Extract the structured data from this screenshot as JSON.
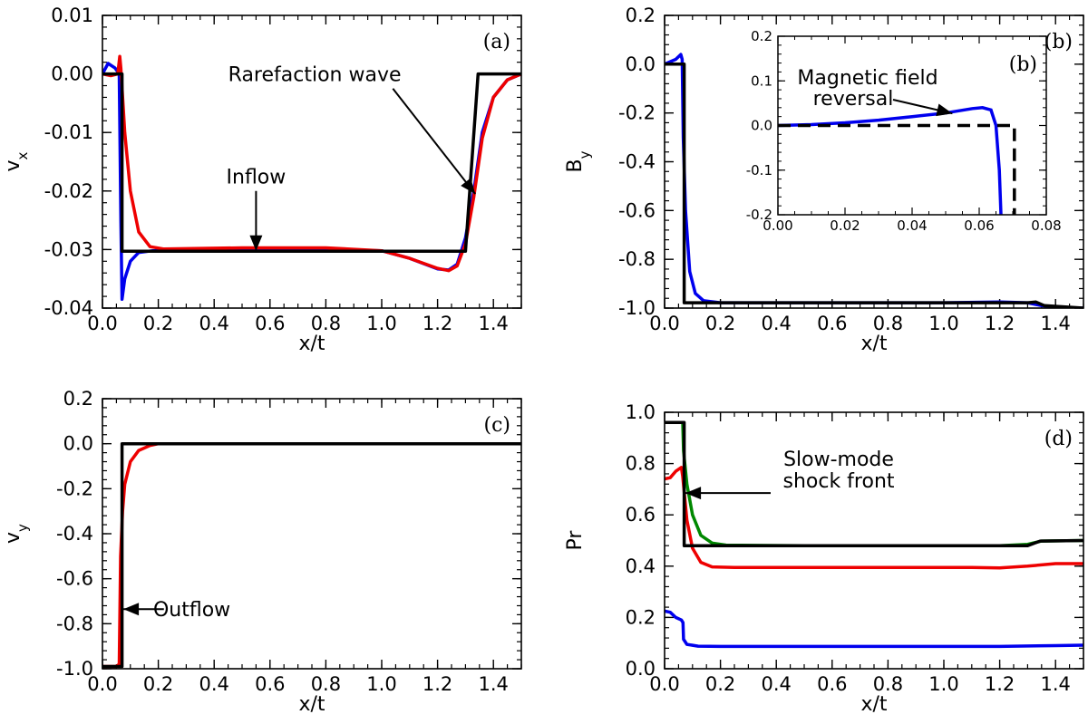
{
  "chart_data": [
    {
      "id": "a",
      "type": "line",
      "panel_label": "(a)",
      "xlabel": "x/t",
      "ylabel": "v",
      "ylabel_sub": "x",
      "xlim": [
        0,
        1.5
      ],
      "ylim": [
        -0.04,
        0.01
      ],
      "xticks": [
        0.0,
        0.2,
        0.4,
        0.6,
        0.8,
        1.0,
        1.2,
        1.4
      ],
      "xtick_labels": [
        "0.0",
        "0.2",
        "0.4",
        "0.6",
        "0.8",
        "1.0",
        "1.2",
        "1.4"
      ],
      "yticks": [
        -0.04,
        -0.03,
        -0.02,
        -0.01,
        0.0,
        0.01
      ],
      "ytick_labels": [
        "-0.04",
        "-0.03",
        "-0.02",
        "-0.01",
        "0.00",
        "0.01"
      ],
      "series": [
        {
          "name": "blue",
          "color": "#0000ee",
          "points": [
            [
              0,
              0
            ],
            [
              0.02,
              0.0018
            ],
            [
              0.045,
              0.001
            ],
            [
              0.06,
              0
            ],
            [
              0.066,
              -0.025
            ],
            [
              0.07,
              -0.0385
            ],
            [
              0.08,
              -0.035
            ],
            [
              0.1,
              -0.032
            ],
            [
              0.13,
              -0.0305
            ],
            [
              0.18,
              -0.0302
            ],
            [
              0.4,
              -0.0301
            ],
            [
              0.8,
              -0.03
            ],
            [
              1.0,
              -0.0302
            ],
            [
              1.1,
              -0.0315
            ],
            [
              1.2,
              -0.0333
            ],
            [
              1.24,
              -0.0335
            ],
            [
              1.27,
              -0.0325
            ],
            [
              1.3,
              -0.028
            ],
            [
              1.33,
              -0.02
            ],
            [
              1.36,
              -0.01
            ],
            [
              1.4,
              -0.004
            ],
            [
              1.45,
              -0.001
            ],
            [
              1.5,
              0
            ]
          ]
        },
        {
          "name": "red",
          "color": "#ee0000",
          "points": [
            [
              0,
              0
            ],
            [
              0.03,
              -0.0003
            ],
            [
              0.055,
              0
            ],
            [
              0.062,
              0.003
            ],
            [
              0.066,
              0.001
            ],
            [
              0.08,
              -0.01
            ],
            [
              0.1,
              -0.02
            ],
            [
              0.13,
              -0.027
            ],
            [
              0.17,
              -0.0295
            ],
            [
              0.22,
              -0.0299
            ],
            [
              0.5,
              -0.0297
            ],
            [
              0.8,
              -0.0297
            ],
            [
              1.0,
              -0.0302
            ],
            [
              1.1,
              -0.0315
            ],
            [
              1.2,
              -0.0332
            ],
            [
              1.24,
              -0.0336
            ],
            [
              1.27,
              -0.0328
            ],
            [
              1.3,
              -0.029
            ],
            [
              1.33,
              -0.021
            ],
            [
              1.36,
              -0.011
            ],
            [
              1.4,
              -0.004
            ],
            [
              1.45,
              -0.001
            ],
            [
              1.5,
              0
            ]
          ]
        },
        {
          "name": "black",
          "color": "#000000",
          "points": [
            [
              0,
              0
            ],
            [
              0.07,
              0
            ],
            [
              0.07,
              -0.0303
            ],
            [
              1.3,
              -0.0303
            ],
            [
              1.345,
              0
            ],
            [
              1.5,
              0
            ]
          ]
        }
      ],
      "annotations": [
        {
          "text": "Rarefaction wave",
          "x": 0.76,
          "y": 0.0,
          "arrow_to": [
            1.335,
            -0.0205
          ]
        },
        {
          "text": "Inflow",
          "x": 0.55,
          "y": -0.0175,
          "arrow_to": [
            0.55,
            -0.0302
          ]
        }
      ]
    },
    {
      "id": "b",
      "type": "line",
      "panel_label": "(b)",
      "xlabel": "x/t",
      "ylabel": "B",
      "ylabel_sub": "y",
      "xlim": [
        0,
        1.5
      ],
      "ylim": [
        -1.0,
        0.2
      ],
      "xticks": [
        0.0,
        0.2,
        0.4,
        0.6,
        0.8,
        1.0,
        1.2,
        1.4
      ],
      "xtick_labels": [
        "0.0",
        "0.2",
        "0.4",
        "0.6",
        "0.8",
        "1.0",
        "1.2",
        "1.4"
      ],
      "yticks": [
        -1.0,
        -0.8,
        -0.6,
        -0.4,
        -0.2,
        0.0,
        0.2
      ],
      "ytick_labels": [
        "-1.0",
        "-0.8",
        "-0.6",
        "-0.4",
        "-0.2",
        "0.0",
        "0.2"
      ],
      "series": [
        {
          "name": "blue",
          "color": "#0000ee",
          "points": [
            [
              0,
              0
            ],
            [
              0.04,
              0.02
            ],
            [
              0.058,
              0.04
            ],
            [
              0.063,
              0.02
            ],
            [
              0.067,
              -0.3
            ],
            [
              0.075,
              -0.6
            ],
            [
              0.09,
              -0.85
            ],
            [
              0.11,
              -0.94
            ],
            [
              0.14,
              -0.97
            ],
            [
              0.2,
              -0.978
            ],
            [
              0.6,
              -0.978
            ],
            [
              1.0,
              -0.978
            ],
            [
              1.2,
              -0.975
            ],
            [
              1.3,
              -0.978
            ],
            [
              1.35,
              -0.99
            ],
            [
              1.4,
              -0.997
            ],
            [
              1.5,
              -1.0
            ]
          ]
        },
        {
          "name": "black",
          "color": "#000000",
          "points": [
            [
              0,
              0
            ],
            [
              0.07,
              0
            ],
            [
              0.07,
              -0.978
            ],
            [
              1.3,
              -0.978
            ],
            [
              1.33,
              -0.975
            ],
            [
              1.36,
              -0.99
            ],
            [
              1.5,
              -1.0
            ]
          ]
        }
      ],
      "inset": {
        "xlim": [
          0,
          0.08
        ],
        "ylim": [
          -0.2,
          0.2
        ],
        "xticks": [
          0.0,
          0.02,
          0.04,
          0.06,
          0.08
        ],
        "xtick_labels": [
          "0.00",
          "0.02",
          "0.04",
          "0.06",
          "0.08"
        ],
        "yticks": [
          -0.2,
          -0.1,
          0.0,
          0.1,
          0.2
        ],
        "ytick_labels": [
          "-0.2",
          "-0.1",
          "0.0",
          "0.1",
          "0.2"
        ],
        "series": [
          {
            "name": "blue",
            "color": "#0000ee",
            "points": [
              [
                0,
                0
              ],
              [
                0.01,
                0.002
              ],
              [
                0.02,
                0.006
              ],
              [
                0.03,
                0.012
              ],
              [
                0.04,
                0.02
              ],
              [
                0.05,
                0.028
              ],
              [
                0.058,
                0.038
              ],
              [
                0.061,
                0.04
              ],
              [
                0.0635,
                0.035
              ],
              [
                0.065,
                0.0
              ],
              [
                0.066,
                -0.1
              ],
              [
                0.0665,
                -0.2
              ]
            ]
          },
          {
            "name": "black",
            "color": "#000000",
            "dashed": true,
            "points": [
              [
                0,
                0
              ],
              [
                0.0705,
                0
              ],
              [
                0.0705,
                -0.2
              ]
            ]
          }
        ],
        "annotation": {
          "line1": "Magnetic field",
          "line2": "reversal",
          "arrow_to": [
            0.052,
            0.027
          ]
        }
      }
    },
    {
      "id": "c",
      "type": "line",
      "panel_label": "(c)",
      "xlabel": "x/t",
      "ylabel": "v",
      "ylabel_sub": "y",
      "xlim": [
        0,
        1.5
      ],
      "ylim": [
        -1.0,
        0.2
      ],
      "xticks": [
        0.0,
        0.2,
        0.4,
        0.6,
        0.8,
        1.0,
        1.2,
        1.4
      ],
      "xtick_labels": [
        "0.0",
        "0.2",
        "0.4",
        "0.6",
        "0.8",
        "1.0",
        "1.2",
        "1.4"
      ],
      "yticks": [
        -1.0,
        -0.8,
        -0.6,
        -0.4,
        -0.2,
        0.0,
        0.2
      ],
      "ytick_labels": [
        "-1.0",
        "-0.8",
        "-0.6",
        "-0.4",
        "-0.2",
        "0.0",
        "0.2"
      ],
      "series": [
        {
          "name": "red",
          "color": "#ee0000",
          "points": [
            [
              0,
              -0.99
            ],
            [
              0.05,
              -0.99
            ],
            [
              0.06,
              -0.98
            ],
            [
              0.065,
              -0.5
            ],
            [
              0.072,
              -0.3
            ],
            [
              0.08,
              -0.18
            ],
            [
              0.1,
              -0.08
            ],
            [
              0.13,
              -0.03
            ],
            [
              0.17,
              -0.008
            ],
            [
              0.2,
              0
            ],
            [
              1.3,
              0
            ],
            [
              1.5,
              0
            ]
          ]
        },
        {
          "name": "black",
          "color": "#000000",
          "points": [
            [
              0,
              -0.99
            ],
            [
              0.07,
              -0.99
            ],
            [
              0.07,
              0
            ],
            [
              1.5,
              0
            ]
          ]
        }
      ],
      "annotations": [
        {
          "text": "Outflow",
          "x": 0.32,
          "y": -0.735,
          "arrow_to": [
            0.075,
            -0.735
          ]
        }
      ]
    },
    {
      "id": "d",
      "type": "line",
      "panel_label": "(d)",
      "xlabel": "x/t",
      "ylabel": "Pr",
      "ylabel_sub": "",
      "xlim": [
        0,
        1.5
      ],
      "ylim": [
        0.0,
        1.0
      ],
      "xticks": [
        0.0,
        0.2,
        0.4,
        0.6,
        0.8,
        1.0,
        1.2,
        1.4
      ],
      "xtick_labels": [
        "0.0",
        "0.2",
        "0.4",
        "0.6",
        "0.8",
        "1.0",
        "1.2",
        "1.4"
      ],
      "yticks": [
        0.0,
        0.2,
        0.4,
        0.6,
        0.8,
        1.0
      ],
      "ytick_labels": [
        "0.0",
        "0.2",
        "0.4",
        "0.6",
        "0.8",
        "1.0"
      ],
      "series": [
        {
          "name": "green",
          "color": "#008800",
          "points": [
            [
              0,
              0.96
            ],
            [
              0.065,
              0.96
            ],
            [
              0.068,
              0.85
            ],
            [
              0.08,
              0.72
            ],
            [
              0.1,
              0.6
            ],
            [
              0.13,
              0.52
            ],
            [
              0.17,
              0.49
            ],
            [
              0.22,
              0.482
            ],
            [
              0.5,
              0.48
            ],
            [
              1.2,
              0.48
            ],
            [
              1.3,
              0.485
            ],
            [
              1.35,
              0.498
            ],
            [
              1.5,
              0.5
            ]
          ]
        },
        {
          "name": "red",
          "color": "#ee0000",
          "points": [
            [
              0,
              0.74
            ],
            [
              0.02,
              0.745
            ],
            [
              0.04,
              0.77
            ],
            [
              0.06,
              0.785
            ],
            [
              0.065,
              0.75
            ],
            [
              0.08,
              0.58
            ],
            [
              0.1,
              0.47
            ],
            [
              0.13,
              0.415
            ],
            [
              0.17,
              0.397
            ],
            [
              0.25,
              0.395
            ],
            [
              0.6,
              0.395
            ],
            [
              1.1,
              0.395
            ],
            [
              1.2,
              0.393
            ],
            [
              1.3,
              0.4
            ],
            [
              1.4,
              0.41
            ],
            [
              1.5,
              0.41
            ]
          ]
        },
        {
          "name": "blue",
          "color": "#0000ee",
          "points": [
            [
              0,
              0.225
            ],
            [
              0.02,
              0.22
            ],
            [
              0.04,
              0.2
            ],
            [
              0.06,
              0.19
            ],
            [
              0.066,
              0.18
            ],
            [
              0.068,
              0.115
            ],
            [
              0.08,
              0.095
            ],
            [
              0.12,
              0.088
            ],
            [
              0.2,
              0.087
            ],
            [
              1.0,
              0.087
            ],
            [
              1.2,
              0.087
            ],
            [
              1.4,
              0.09
            ],
            [
              1.5,
              0.092
            ]
          ]
        },
        {
          "name": "black",
          "color": "#000000",
          "points": [
            [
              0,
              0.96
            ],
            [
              0.07,
              0.96
            ],
            [
              0.07,
              0.48
            ],
            [
              1.3,
              0.48
            ],
            [
              1.345,
              0.498
            ],
            [
              1.5,
              0.5
            ]
          ]
        }
      ],
      "annotations": [
        {
          "line1": "Slow-mode",
          "line2": "shock front",
          "x": 0.4,
          "y": 0.665,
          "arrow_to": [
            0.075,
            0.685
          ]
        }
      ]
    }
  ]
}
